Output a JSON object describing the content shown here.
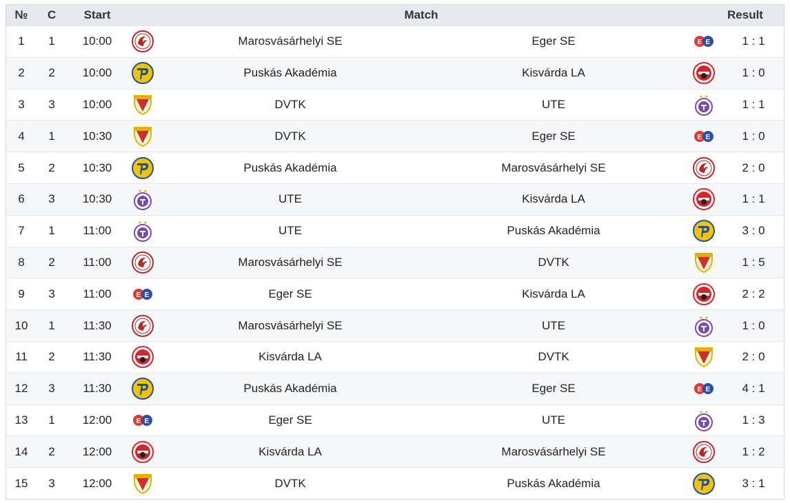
{
  "header": {
    "no": "№",
    "c": "C",
    "start": "Start",
    "match": "Match",
    "result": "Result"
  },
  "teams": {
    "mvh": {
      "name": "Marosvásárhelyi SE",
      "icon": "marosvasarhelyi-se-crest-icon",
      "color": "#b22a2a"
    },
    "eger": {
      "name": "Eger SE",
      "icon": "eger-se-logo-icon",
      "color": "#e23a32"
    },
    "puskas": {
      "name": "Puskás Akadémia",
      "icon": "puskas-akademia-crest-icon",
      "color": "#1e4fa0"
    },
    "kisvarda": {
      "name": "Kisvárda LA",
      "icon": "kisvarda-crest-icon",
      "color": "#d8232a"
    },
    "dvtk": {
      "name": "DVTK",
      "icon": "dvtk-crest-icon",
      "color": "#d42b2b"
    },
    "ute": {
      "name": "UTE",
      "icon": "ute-crest-icon",
      "color": "#7a4aa8"
    }
  },
  "matches": [
    {
      "no": "1",
      "c": "1",
      "start": "10:00",
      "home": "Marosvásárhelyi SE",
      "away": "Eger SE",
      "result": "1 : 1"
    },
    {
      "no": "2",
      "c": "2",
      "start": "10:00",
      "home": "Puskás Akadémia",
      "away": "Kisvárda LA",
      "result": "1 : 0"
    },
    {
      "no": "3",
      "c": "3",
      "start": "10:00",
      "home": "DVTK",
      "away": "UTE",
      "result": "1 : 1"
    },
    {
      "no": "4",
      "c": "1",
      "start": "10:30",
      "home": "DVTK",
      "away": "Eger SE",
      "result": "1 : 0"
    },
    {
      "no": "5",
      "c": "2",
      "start": "10:30",
      "home": "Puskás Akadémia",
      "away": "Marosvásárhelyi SE",
      "result": "2 : 0"
    },
    {
      "no": "6",
      "c": "3",
      "start": "10:30",
      "home": "UTE",
      "away": "Kisvárda LA",
      "result": "1 : 1"
    },
    {
      "no": "7",
      "c": "1",
      "start": "11:00",
      "home": "UTE",
      "away": "Puskás Akadémia",
      "result": "3 : 0"
    },
    {
      "no": "8",
      "c": "2",
      "start": "11:00",
      "home": "Marosvásárhelyi SE",
      "away": "DVTK",
      "result": "1 : 5"
    },
    {
      "no": "9",
      "c": "3",
      "start": "11:00",
      "home": "Eger SE",
      "away": "Kisvárda LA",
      "result": "2 : 2"
    },
    {
      "no": "10",
      "c": "1",
      "start": "11:30",
      "home": "Marosvásárhelyi SE",
      "away": "UTE",
      "result": "1 : 0"
    },
    {
      "no": "11",
      "c": "2",
      "start": "11:30",
      "home": "Kisvárda LA",
      "away": "DVTK",
      "result": "2 : 0"
    },
    {
      "no": "12",
      "c": "3",
      "start": "11:30",
      "home": "Puskás Akadémia",
      "away": "Eger SE",
      "result": "4 : 1"
    },
    {
      "no": "13",
      "c": "1",
      "start": "12:00",
      "home": "Eger SE",
      "away": "UTE",
      "result": "1 : 3"
    },
    {
      "no": "14",
      "c": "2",
      "start": "12:00",
      "home": "Kisvárda LA",
      "away": "Marosvásárhelyi SE",
      "result": "1 : 2"
    },
    {
      "no": "15",
      "c": "3",
      "start": "12:00",
      "home": "DVTK",
      "away": "Puskás Akadémia",
      "result": "3 : 1"
    }
  ]
}
